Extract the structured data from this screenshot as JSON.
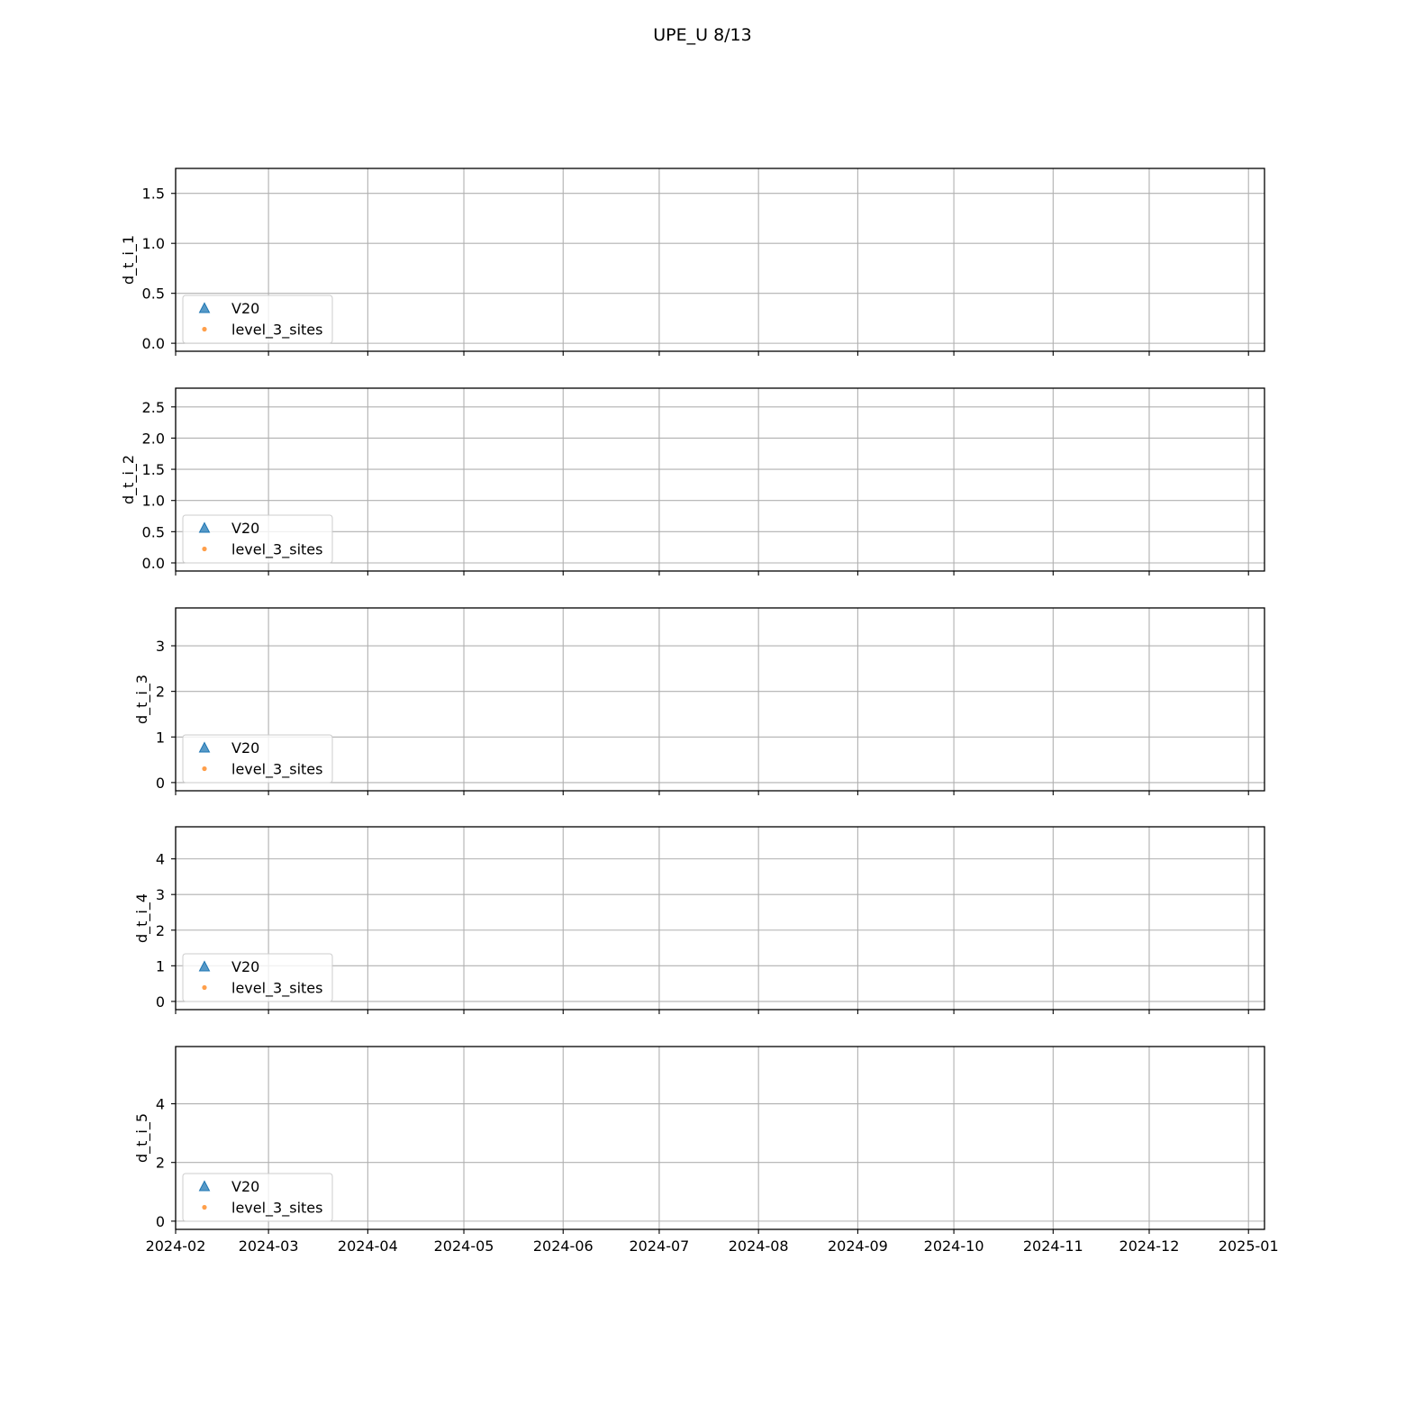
{
  "figure_title": "UPE_U 8/13",
  "colors": {
    "V20": "#1f77b4",
    "level_3_sites": "#ff7f0e",
    "grid": "#b0b0b0",
    "axes": "#000000"
  },
  "chart_data": [
    {
      "type": "scatter",
      "ylabel": "d_t_i_1",
      "ylim": [
        -0.08,
        1.75
      ],
      "yticks": [
        0.0,
        0.5,
        1.0,
        1.5
      ],
      "ytick_labels": [
        "0.0",
        "0.5",
        "1.0",
        "1.5"
      ],
      "xlim": [
        "2024-02-01",
        "2025-01-06"
      ],
      "xticks": [
        "2024-02",
        "2024-03",
        "2024-04",
        "2024-05",
        "2024-06",
        "2024-07",
        "2024-08",
        "2024-09",
        "2024-10",
        "2024-11",
        "2024-12",
        "2025-01"
      ],
      "grid": true,
      "legend": {
        "placement": "lower left",
        "entries": [
          {
            "label": "V20",
            "marker": "triangle"
          },
          {
            "label": "level_3_sites",
            "marker": "dot"
          }
        ]
      },
      "series": [
        {
          "name": "V20",
          "x": [],
          "y": []
        },
        {
          "name": "level_3_sites",
          "x": [],
          "y": []
        }
      ]
    },
    {
      "type": "scatter",
      "ylabel": "d_t_i_2",
      "ylim": [
        -0.13,
        2.8
      ],
      "yticks": [
        0.0,
        0.5,
        1.0,
        1.5,
        2.0,
        2.5
      ],
      "ytick_labels": [
        "0.0",
        "0.5",
        "1.0",
        "1.5",
        "2.0",
        "2.5"
      ],
      "xlim": [
        "2024-02-01",
        "2025-01-06"
      ],
      "xticks": [
        "2024-02",
        "2024-03",
        "2024-04",
        "2024-05",
        "2024-06",
        "2024-07",
        "2024-08",
        "2024-09",
        "2024-10",
        "2024-11",
        "2024-12",
        "2025-01"
      ],
      "grid": true,
      "legend": {
        "placement": "lower left",
        "entries": [
          {
            "label": "V20",
            "marker": "triangle"
          },
          {
            "label": "level_3_sites",
            "marker": "dot"
          }
        ]
      },
      "series": [
        {
          "name": "V20",
          "x": [],
          "y": []
        },
        {
          "name": "level_3_sites",
          "x": [],
          "y": []
        }
      ]
    },
    {
      "type": "scatter",
      "ylabel": "d_t_i_3",
      "ylim": [
        -0.18,
        3.83
      ],
      "yticks": [
        0,
        1,
        2,
        3
      ],
      "ytick_labels": [
        "0",
        "1",
        "2",
        "3"
      ],
      "xlim": [
        "2024-02-01",
        "2025-01-06"
      ],
      "xticks": [
        "2024-02",
        "2024-03",
        "2024-04",
        "2024-05",
        "2024-06",
        "2024-07",
        "2024-08",
        "2024-09",
        "2024-10",
        "2024-11",
        "2024-12",
        "2025-01"
      ],
      "grid": true,
      "legend": {
        "placement": "lower left",
        "entries": [
          {
            "label": "V20",
            "marker": "triangle"
          },
          {
            "label": "level_3_sites",
            "marker": "dot"
          }
        ]
      },
      "series": [
        {
          "name": "V20",
          "x": [],
          "y": []
        },
        {
          "name": "level_3_sites",
          "x": [],
          "y": []
        }
      ]
    },
    {
      "type": "scatter",
      "ylabel": "d_t_i_4",
      "ylim": [
        -0.23,
        4.9
      ],
      "yticks": [
        0,
        1,
        2,
        3,
        4
      ],
      "ytick_labels": [
        "0",
        "1",
        "2",
        "3",
        "4"
      ],
      "xlim": [
        "2024-02-01",
        "2025-01-06"
      ],
      "xticks": [
        "2024-02",
        "2024-03",
        "2024-04",
        "2024-05",
        "2024-06",
        "2024-07",
        "2024-08",
        "2024-09",
        "2024-10",
        "2024-11",
        "2024-12",
        "2025-01"
      ],
      "grid": true,
      "legend": {
        "placement": "lower left",
        "entries": [
          {
            "label": "V20",
            "marker": "triangle"
          },
          {
            "label": "level_3_sites",
            "marker": "dot"
          }
        ]
      },
      "series": [
        {
          "name": "V20",
          "x": [],
          "y": []
        },
        {
          "name": "level_3_sites",
          "x": [],
          "y": []
        }
      ]
    },
    {
      "type": "scatter",
      "ylabel": "d_t_i_5",
      "ylim": [
        -0.28,
        5.95
      ],
      "yticks": [
        0,
        2,
        4
      ],
      "ytick_labels": [
        "0",
        "2",
        "4"
      ],
      "xlim": [
        "2024-02-01",
        "2025-01-06"
      ],
      "xticks": [
        "2024-02",
        "2024-03",
        "2024-04",
        "2024-05",
        "2024-06",
        "2024-07",
        "2024-08",
        "2024-09",
        "2024-10",
        "2024-11",
        "2024-12",
        "2025-01"
      ],
      "xtick_labels": [
        "2024-02",
        "2024-03",
        "2024-04",
        "2024-05",
        "2024-06",
        "2024-07",
        "2024-08",
        "2024-09",
        "2024-10",
        "2024-11",
        "2024-12",
        "2025-01"
      ],
      "grid": true,
      "legend": {
        "placement": "lower left",
        "entries": [
          {
            "label": "V20",
            "marker": "triangle"
          },
          {
            "label": "level_3_sites",
            "marker": "dot"
          }
        ]
      },
      "series": [
        {
          "name": "V20",
          "x": [],
          "y": []
        },
        {
          "name": "level_3_sites",
          "x": [],
          "y": []
        }
      ]
    }
  ]
}
